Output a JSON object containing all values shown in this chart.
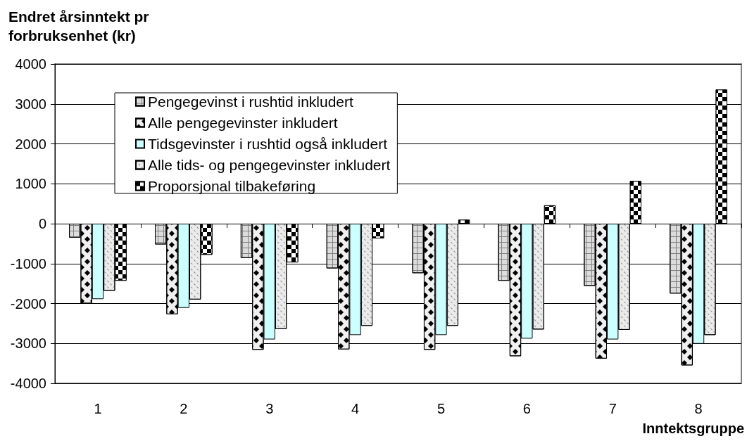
{
  "chart_data": {
    "type": "bar",
    "xlabel": "Inntektsgruppe",
    "ylabel": "Endret årsinntekt pr forbruksenhet (kr)",
    "categories": [
      "1",
      "2",
      "3",
      "4",
      "5",
      "6",
      "7",
      "8"
    ],
    "series": [
      {
        "name": "Pengegevinst i rushtid inkludert",
        "color": "#dcdcdc",
        "values": [
          -350,
          -520,
          -860,
          -1120,
          -1240,
          -1430,
          -1560,
          -1750
        ]
      },
      {
        "name": "Alle pengegevinster inkludert",
        "color": "#f0f0f0",
        "values": [
          -2000,
          -2270,
          -3160,
          -3150,
          -3160,
          -3320,
          -3380,
          -3550
        ]
      },
      {
        "name": "Tidsgevinster i rushtid også inkludert",
        "color": "#ccffff",
        "values": [
          -1890,
          -2110,
          -2900,
          -2790,
          -2790,
          -2880,
          -2900,
          -3010
        ]
      },
      {
        "name": "Alle tids- og pengegevinster inkludert",
        "color": "#ebebeb",
        "values": [
          -1680,
          -1900,
          -2640,
          -2560,
          -2560,
          -2650,
          -2660,
          -2790
        ]
      },
      {
        "name": "Proporsjonal tilbakeføring",
        "color": "#000000",
        "values": [
          -1430,
          -780,
          -970,
          -370,
          100,
          460,
          1070,
          3360
        ]
      }
    ],
    "ylim": [
      -4000,
      4000
    ],
    "yticks": [
      -4000,
      -3000,
      -2000,
      -1000,
      0,
      1000,
      2000,
      3000,
      4000
    ],
    "grid": "y",
    "legend": "top left"
  }
}
